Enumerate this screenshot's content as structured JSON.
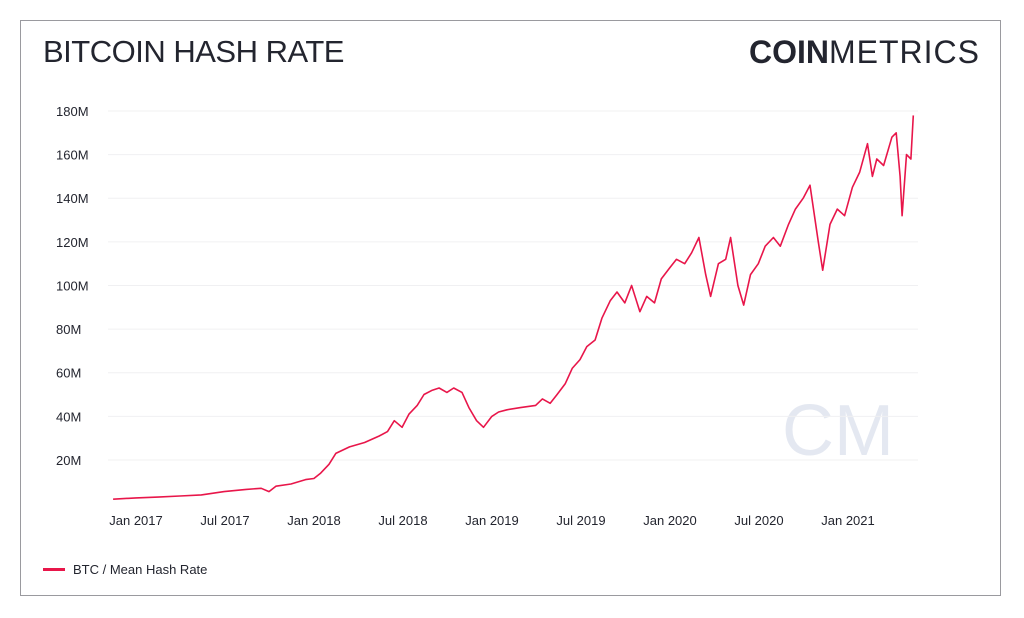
{
  "title": "BITCOIN HASH RATE",
  "logo": {
    "bold": "COIN",
    "light": "METRICS",
    "watermark": "CM"
  },
  "chart_data": {
    "type": "line",
    "title": "BITCOIN HASH RATE",
    "xlabel": "",
    "ylabel": "",
    "y_ticks": [
      "20M",
      "40M",
      "60M",
      "80M",
      "100M",
      "120M",
      "140M",
      "160M",
      "180M"
    ],
    "x_ticks": [
      "Jan 2017",
      "Jul 2017",
      "Jan 2018",
      "Jul 2018",
      "Jan 2019",
      "Jul 2019",
      "Jan 2020",
      "Jul 2020",
      "Jan 2021"
    ],
    "ylim": [
      0,
      180000000
    ],
    "grid": "horizontal",
    "legend_placement": "bottom-left",
    "color": "#e8164a",
    "series": [
      {
        "name": "BTC / Mean Hash Rate",
        "points": [
          [
            "2016-11-15",
            2.0
          ],
          [
            "2017-01-01",
            2.6
          ],
          [
            "2017-02-15",
            3.0
          ],
          [
            "2017-04-01",
            3.5
          ],
          [
            "2017-05-15",
            4.0
          ],
          [
            "2017-07-01",
            5.5
          ],
          [
            "2017-08-15",
            6.5
          ],
          [
            "2017-09-15",
            7.0
          ],
          [
            "2017-10-01",
            5.5
          ],
          [
            "2017-10-15",
            8.0
          ],
          [
            "2017-11-15",
            9.0
          ],
          [
            "2017-12-15",
            11
          ],
          [
            "2018-01-01",
            11.5
          ],
          [
            "2018-01-15",
            14
          ],
          [
            "2018-02-01",
            18
          ],
          [
            "2018-02-15",
            23
          ],
          [
            "2018-03-15",
            26
          ],
          [
            "2018-04-15",
            28
          ],
          [
            "2018-05-15",
            31
          ],
          [
            "2018-06-01",
            33
          ],
          [
            "2018-06-15",
            38
          ],
          [
            "2018-07-01",
            35
          ],
          [
            "2018-07-15",
            41
          ],
          [
            "2018-08-01",
            45
          ],
          [
            "2018-08-15",
            50
          ],
          [
            "2018-09-01",
            52
          ],
          [
            "2018-09-15",
            53
          ],
          [
            "2018-10-01",
            51
          ],
          [
            "2018-10-15",
            53
          ],
          [
            "2018-11-01",
            51
          ],
          [
            "2018-11-15",
            44
          ],
          [
            "2018-12-01",
            38
          ],
          [
            "2018-12-15",
            35
          ],
          [
            "2019-01-01",
            40
          ],
          [
            "2019-01-15",
            42
          ],
          [
            "2019-02-01",
            43
          ],
          [
            "2019-03-01",
            44
          ],
          [
            "2019-04-01",
            45
          ],
          [
            "2019-04-15",
            48
          ],
          [
            "2019-05-01",
            46
          ],
          [
            "2019-05-15",
            50
          ],
          [
            "2019-06-01",
            55
          ],
          [
            "2019-06-15",
            62
          ],
          [
            "2019-07-01",
            66
          ],
          [
            "2019-07-15",
            72
          ],
          [
            "2019-08-01",
            75
          ],
          [
            "2019-08-15",
            85
          ],
          [
            "2019-09-01",
            93
          ],
          [
            "2019-09-15",
            97
          ],
          [
            "2019-10-01",
            92
          ],
          [
            "2019-10-15",
            100
          ],
          [
            "2019-11-01",
            88
          ],
          [
            "2019-11-15",
            95
          ],
          [
            "2019-12-01",
            92
          ],
          [
            "2019-12-15",
            103
          ],
          [
            "2020-01-01",
            108
          ],
          [
            "2020-01-15",
            112
          ],
          [
            "2020-02-01",
            110
          ],
          [
            "2020-02-15",
            115
          ],
          [
            "2020-03-01",
            122
          ],
          [
            "2020-03-15",
            105
          ],
          [
            "2020-03-25",
            95
          ],
          [
            "2020-04-10",
            110
          ],
          [
            "2020-04-25",
            112
          ],
          [
            "2020-05-05",
            122
          ],
          [
            "2020-05-20",
            100
          ],
          [
            "2020-06-01",
            91
          ],
          [
            "2020-06-15",
            105
          ],
          [
            "2020-07-01",
            110
          ],
          [
            "2020-07-15",
            118
          ],
          [
            "2020-08-01",
            122
          ],
          [
            "2020-08-15",
            118
          ],
          [
            "2020-09-01",
            128
          ],
          [
            "2020-09-15",
            135
          ],
          [
            "2020-10-01",
            140
          ],
          [
            "2020-10-15",
            146
          ],
          [
            "2020-11-01",
            120
          ],
          [
            "2020-11-10",
            107
          ],
          [
            "2020-11-25",
            128
          ],
          [
            "2020-12-10",
            135
          ],
          [
            "2020-12-25",
            132
          ],
          [
            "2021-01-10",
            145
          ],
          [
            "2021-01-25",
            152
          ],
          [
            "2021-02-10",
            165
          ],
          [
            "2021-02-20",
            150
          ],
          [
            "2021-03-01",
            158
          ],
          [
            "2021-03-15",
            155
          ],
          [
            "2021-04-01",
            168
          ],
          [
            "2021-04-10",
            170
          ],
          [
            "2021-04-18",
            150
          ],
          [
            "2021-04-22",
            132
          ],
          [
            "2021-05-01",
            160
          ],
          [
            "2021-05-10",
            158
          ],
          [
            "2021-05-15",
            178
          ]
        ]
      }
    ]
  }
}
